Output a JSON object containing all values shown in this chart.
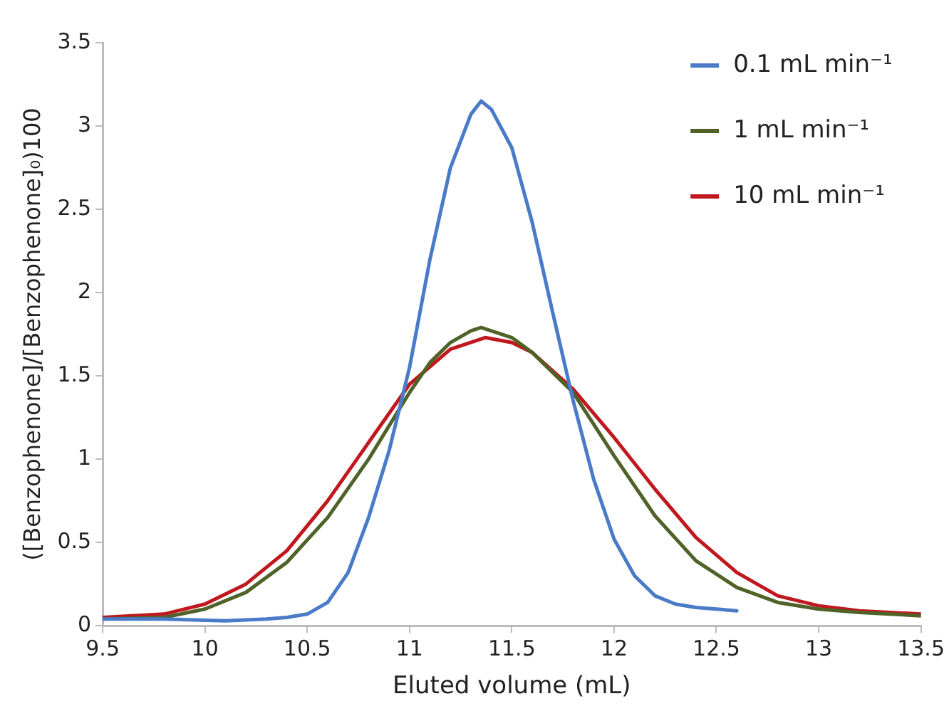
{
  "chart_data": {
    "type": "line",
    "xlabel": "Eluted volume (mL)",
    "ylabel": "([Benzophenone]/[Benzophenone]₀)100",
    "xlim": [
      9.5,
      13.5
    ],
    "xticks": [
      9.5,
      10,
      10.5,
      11,
      11.5,
      12,
      12.5,
      13,
      13.5
    ],
    "ylim": [
      0,
      3.5
    ],
    "yticks": [
      0,
      0.5,
      1,
      1.5,
      2,
      2.5,
      3,
      3.5
    ],
    "grid": false,
    "legend": "top right",
    "marker": "none",
    "line_style": "solid",
    "series": [
      {
        "name": "0.1 mL min⁻¹",
        "color": "#4a7bc8",
        "x": [
          9.5,
          9.8,
          10.1,
          10.3,
          10.4,
          10.5,
          10.6,
          10.7,
          10.8,
          10.9,
          10.96,
          11.0,
          11.1,
          11.2,
          11.3,
          11.35,
          11.4,
          11.5,
          11.6,
          11.7,
          11.8,
          11.9,
          12.0,
          12.1,
          12.2,
          12.3,
          12.4,
          12.5,
          12.6
        ],
        "values": [
          0.04,
          0.04,
          0.03,
          0.04,
          0.05,
          0.07,
          0.14,
          0.32,
          0.65,
          1.05,
          1.35,
          1.55,
          2.2,
          2.75,
          3.07,
          3.15,
          3.1,
          2.87,
          2.42,
          1.88,
          1.35,
          0.88,
          0.52,
          0.3,
          0.18,
          0.13,
          0.11,
          0.1,
          0.09
        ]
      },
      {
        "name": "1 mL min⁻¹",
        "color": "#4f6228",
        "x": [
          9.5,
          9.8,
          10.0,
          10.2,
          10.4,
          10.6,
          10.8,
          11.0,
          11.1,
          11.2,
          11.3,
          11.35,
          11.5,
          11.6,
          11.8,
          12.0,
          12.2,
          12.4,
          12.6,
          12.8,
          13.0,
          13.2,
          13.5
        ],
        "values": [
          0.04,
          0.05,
          0.1,
          0.2,
          0.38,
          0.65,
          1.0,
          1.4,
          1.58,
          1.7,
          1.77,
          1.79,
          1.73,
          1.64,
          1.4,
          1.02,
          0.66,
          0.39,
          0.23,
          0.14,
          0.1,
          0.08,
          0.06
        ]
      },
      {
        "name": "10 mL min⁻¹",
        "color": "#c0181f",
        "x": [
          9.5,
          9.8,
          10.0,
          10.2,
          10.4,
          10.6,
          10.8,
          11.0,
          11.2,
          11.37,
          11.5,
          11.6,
          11.8,
          12.0,
          12.2,
          12.4,
          12.6,
          12.8,
          13.0,
          13.2,
          13.5
        ],
        "values": [
          0.05,
          0.07,
          0.13,
          0.25,
          0.45,
          0.75,
          1.1,
          1.45,
          1.66,
          1.73,
          1.7,
          1.64,
          1.42,
          1.13,
          0.82,
          0.53,
          0.32,
          0.18,
          0.12,
          0.09,
          0.07
        ]
      }
    ]
  }
}
